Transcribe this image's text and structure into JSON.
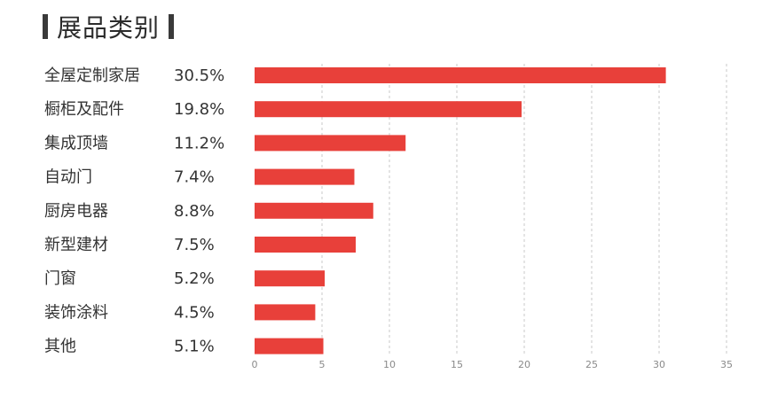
{
  "title": "展品类别",
  "chart_data": {
    "type": "bar",
    "orientation": "horizontal",
    "title": "展品类别",
    "categories": [
      "全屋定制家居",
      "橱柜及配件",
      "集成顶墙",
      "自动门",
      "厨房电器",
      "新型建材",
      "门窗",
      "装饰涂料",
      "其他"
    ],
    "values": [
      30.5,
      19.8,
      11.2,
      7.4,
      8.8,
      7.5,
      5.2,
      4.5,
      5.1
    ],
    "value_labels": [
      "30.5%",
      "19.8%",
      "11.2%",
      "7.4%",
      "8.8%",
      "7.5%",
      "5.2%",
      "4.5%",
      "5.1%"
    ],
    "xlim": [
      0,
      35
    ],
    "xticks": [
      0,
      5,
      10,
      15,
      20,
      25,
      30,
      35
    ],
    "grid": true,
    "bar_color": "#e8403a"
  }
}
